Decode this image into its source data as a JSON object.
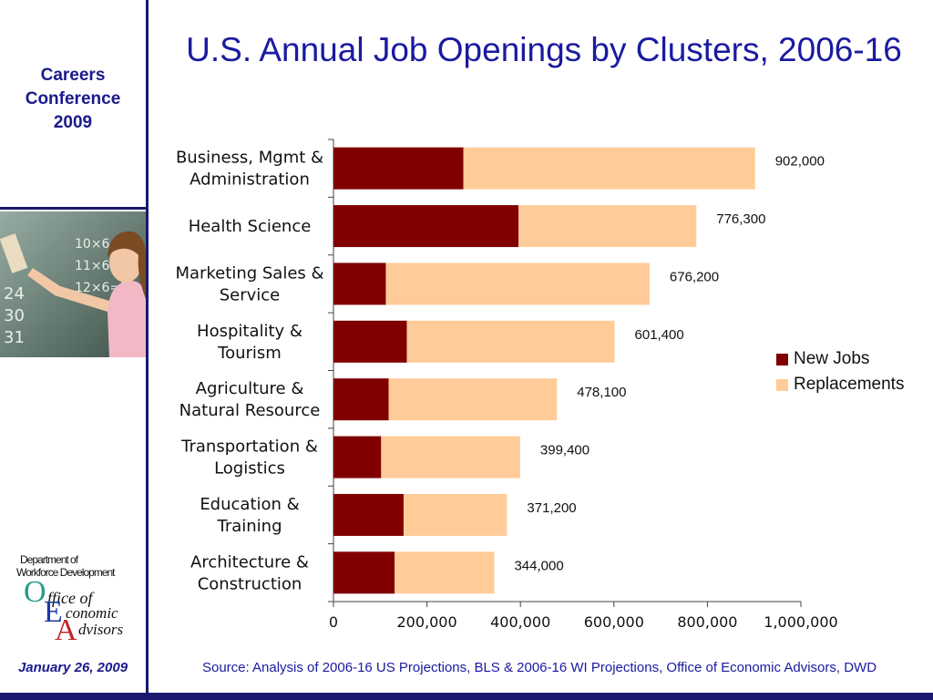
{
  "sidebar": {
    "conference_line1": "Careers",
    "conference_line2": "Conference",
    "conference_line3": "2009",
    "date": "January 26, 2009",
    "logo_line1": "Department of",
    "logo_line2": "Workforce Development",
    "logo_word1": "ffice of",
    "logo_word2": "conomic",
    "logo_word3": "dvisors"
  },
  "slide": {
    "title": "U.S. Annual Job Openings by Clusters, 2006-16",
    "source": "Source: Analysis of 2006-16 US Projections, BLS & 2006-16 WI Projections, Office of Economic Advisors, DWD"
  },
  "colors": {
    "new_jobs": "#800000",
    "replacements": "#ffcc99",
    "accent": "#1a1a6e"
  },
  "chart_data": {
    "type": "bar",
    "orientation": "horizontal",
    "stacked": true,
    "categories": [
      [
        "Business, Mgmt &",
        "Administration"
      ],
      [
        "Health Science"
      ],
      [
        "Marketing Sales &",
        "Service"
      ],
      [
        "Hospitality &",
        "Tourism"
      ],
      [
        "Agriculture &",
        "Natural Resource"
      ],
      [
        "Transportation &",
        "Logistics"
      ],
      [
        "Education &",
        "Training"
      ],
      [
        "Architecture &",
        "Construction"
      ]
    ],
    "series": [
      {
        "name": "New Jobs",
        "values": [
          278000,
          396000,
          112000,
          157000,
          118000,
          102000,
          150000,
          131000
        ]
      },
      {
        "name": "Replacements",
        "values": [
          624000,
          380300,
          564200,
          444400,
          360100,
          297400,
          221200,
          213000
        ]
      }
    ],
    "totals": [
      "902,000",
      "776,300",
      "676,200",
      "601,400",
      "478,100",
      "399,400",
      "371,200",
      "344,000"
    ],
    "xlim": [
      0,
      1000000
    ],
    "xticks": [
      "0",
      "200,000",
      "400,000",
      "600,000",
      "800,000",
      "1,000,000"
    ],
    "grid": false,
    "legend": "right"
  }
}
